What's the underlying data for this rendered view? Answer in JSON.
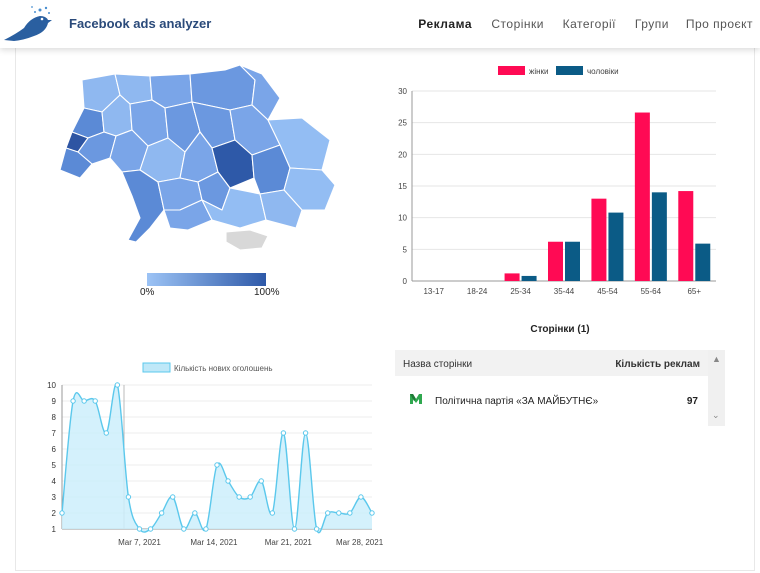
{
  "header": {
    "title": "Facebook ads analyzer",
    "nav": [
      {
        "label": "Реклама",
        "active": true
      },
      {
        "label": "Сторінки",
        "active": false
      },
      {
        "label": "Категорії",
        "active": false
      },
      {
        "label": "Групи",
        "active": false
      },
      {
        "label": "Про проєкт",
        "active": false
      }
    ]
  },
  "map_legend": {
    "min_label": "0%",
    "max_label": "100%",
    "colors": [
      "#9cc3f5",
      "#2e59a8"
    ]
  },
  "chart_data": [
    {
      "type": "bar",
      "categories": [
        "13-17",
        "18-24",
        "25-34",
        "35-44",
        "45-54",
        "55-64",
        "65+"
      ],
      "series": [
        {
          "name": "жінки",
          "color": "#ff0a54",
          "values": [
            0,
            0,
            1.2,
            6.2,
            13,
            26.6,
            14.2
          ]
        },
        {
          "name": "чоловіки",
          "color": "#0b5b86",
          "values": [
            0,
            0,
            0.8,
            6.2,
            10.8,
            14,
            5.9
          ]
        }
      ],
      "ylim": [
        0,
        30
      ],
      "yticks": [
        0,
        5,
        10,
        15,
        20,
        25,
        30
      ],
      "legend_position": "top",
      "grid": "horizontal"
    },
    {
      "type": "area",
      "title": "",
      "series": [
        {
          "name": "Кількість нових оголошень",
          "color": "#5bc8ec",
          "values": [
            2,
            9,
            9,
            9,
            7,
            10,
            3,
            1,
            1,
            2,
            3,
            1,
            2,
            1,
            5,
            4,
            3,
            3,
            4,
            2,
            7,
            1,
            7,
            1,
            2,
            2,
            2,
            3,
            2
          ]
        }
      ],
      "xtick_labels": [
        "Mar 7, 2021",
        "Mar 14, 2021",
        "Mar 21, 2021",
        "Mar 28, 2021"
      ],
      "ylim": [
        1,
        10
      ],
      "yticks": [
        1,
        2,
        3,
        4,
        5,
        6,
        7,
        8,
        9,
        10
      ],
      "legend_position": "top",
      "grid": "horizontal"
    }
  ],
  "pages_table": {
    "title": "Сторінки (1)",
    "columns": [
      "Назва сторінки",
      "Кількість реклам"
    ],
    "rows": [
      {
        "name": "Політична партія «ЗА МАЙБУТНЄ»",
        "count": "97"
      }
    ]
  }
}
